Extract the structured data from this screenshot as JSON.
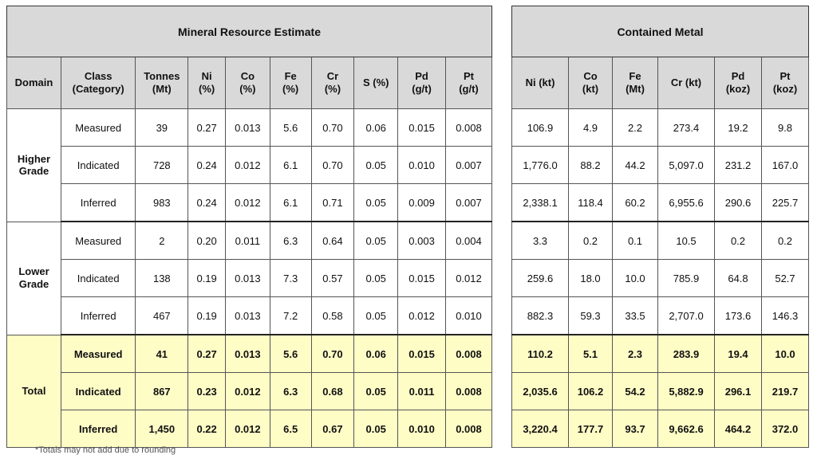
{
  "titles": {
    "left": "Mineral Resource Estimate",
    "right": "Contained Metal"
  },
  "left_headers": [
    [
      "Domain"
    ],
    [
      "Class",
      "(Category)"
    ],
    [
      "Tonnes",
      "(Mt)"
    ],
    [
      "Ni",
      "(%)"
    ],
    [
      "Co",
      "(%)"
    ],
    [
      "Fe",
      "(%)"
    ],
    [
      "Cr",
      "(%)"
    ],
    [
      "S (%)"
    ],
    [
      "Pd",
      "(g/t)"
    ],
    [
      "Pt",
      "(g/t)"
    ]
  ],
  "right_headers": [
    [
      "Ni (kt)"
    ],
    [
      "Co",
      "(kt)"
    ],
    [
      "Fe",
      "(Mt)"
    ],
    [
      "Cr (kt)"
    ],
    [
      "Pd",
      "(koz)"
    ],
    [
      "Pt",
      "(koz)"
    ]
  ],
  "domains": [
    {
      "name": [
        "Higher",
        "Grade"
      ],
      "rows": [
        {
          "class": "Measured",
          "grade": [
            "39",
            "0.27",
            "0.013",
            "5.6",
            "0.70",
            "0.06",
            "0.015",
            "0.008"
          ],
          "metal": [
            "106.9",
            "4.9",
            "2.2",
            "273.4",
            "19.2",
            "9.8"
          ]
        },
        {
          "class": "Indicated",
          "grade": [
            "728",
            "0.24",
            "0.012",
            "6.1",
            "0.70",
            "0.05",
            "0.010",
            "0.007"
          ],
          "metal": [
            "1,776.0",
            "88.2",
            "44.2",
            "5,097.0",
            "231.2",
            "167.0"
          ]
        },
        {
          "class": "Inferred",
          "grade": [
            "983",
            "0.24",
            "0.012",
            "6.1",
            "0.71",
            "0.05",
            "0.009",
            "0.007"
          ],
          "metal": [
            "2,338.1",
            "118.4",
            "60.2",
            "6,955.6",
            "290.6",
            "225.7"
          ]
        }
      ]
    },
    {
      "name": [
        "Lower",
        "Grade"
      ],
      "rows": [
        {
          "class": "Measured",
          "grade": [
            "2",
            "0.20",
            "0.011",
            "6.3",
            "0.64",
            "0.05",
            "0.003",
            "0.004"
          ],
          "metal": [
            "3.3",
            "0.2",
            "0.1",
            "10.5",
            "0.2",
            "0.2"
          ]
        },
        {
          "class": "Indicated",
          "grade": [
            "138",
            "0.19",
            "0.013",
            "7.3",
            "0.57",
            "0.05",
            "0.015",
            "0.012"
          ],
          "metal": [
            "259.6",
            "18.0",
            "10.0",
            "785.9",
            "64.8",
            "52.7"
          ]
        },
        {
          "class": "Inferred",
          "grade": [
            "467",
            "0.19",
            "0.013",
            "7.2",
            "0.58",
            "0.05",
            "0.012",
            "0.010"
          ],
          "metal": [
            "882.3",
            "59.3",
            "33.5",
            "2,707.0",
            "173.6",
            "146.3"
          ]
        }
      ]
    },
    {
      "name": [
        "Total"
      ],
      "total": true,
      "rows": [
        {
          "class": "Measured",
          "grade": [
            "41",
            "0.27",
            "0.013",
            "5.6",
            "0.70",
            "0.06",
            "0.015",
            "0.008"
          ],
          "metal": [
            "110.2",
            "5.1",
            "2.3",
            "283.9",
            "19.4",
            "10.0"
          ]
        },
        {
          "class": "Indicated",
          "grade": [
            "867",
            "0.23",
            "0.012",
            "6.3",
            "0.68",
            "0.05",
            "0.011",
            "0.008"
          ],
          "metal": [
            "2,035.6",
            "106.2",
            "54.2",
            "5,882.9",
            "296.1",
            "219.7"
          ]
        },
        {
          "class": "Inferred",
          "grade": [
            "1,450",
            "0.22",
            "0.012",
            "6.5",
            "0.67",
            "0.05",
            "0.010",
            "0.008"
          ],
          "metal": [
            "3,220.4",
            "177.7",
            "93.7",
            "9,662.6",
            "464.2",
            "372.0"
          ]
        }
      ]
    }
  ],
  "footnote": "*Totals may not add due to rounding"
}
